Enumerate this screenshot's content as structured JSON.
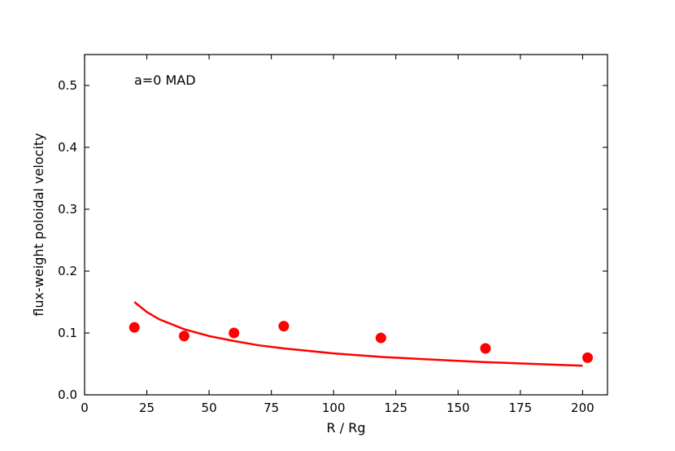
{
  "chart_data": {
    "type": "scatter",
    "title": "",
    "xlabel": "R / Rg",
    "ylabel": "flux-weight poloidal velocity",
    "xlim": [
      0,
      210
    ],
    "ylim": [
      0,
      0.55
    ],
    "xticks": [
      0,
      25,
      50,
      75,
      100,
      125,
      150,
      175,
      200
    ],
    "yticks": [
      0.0,
      0.1,
      0.2,
      0.3,
      0.4,
      0.5
    ],
    "xtick_labels": [
      "0",
      "25",
      "50",
      "75",
      "100",
      "125",
      "150",
      "175",
      "200"
    ],
    "ytick_labels": [
      "0.0",
      "0.1",
      "0.2",
      "0.3",
      "0.4",
      "0.5"
    ],
    "annotation": "a=0 MAD",
    "grid": false,
    "color": "#ff0000",
    "series": [
      {
        "kind": "points",
        "x": [
          20,
          40,
          60,
          80,
          119,
          161,
          202
        ],
        "y": [
          0.109,
          0.095,
          0.1,
          0.111,
          0.092,
          0.075,
          0.06
        ]
      },
      {
        "kind": "line",
        "x": [
          20,
          25,
          30,
          40,
          50,
          60,
          70,
          80,
          100,
          120,
          140,
          160,
          180,
          200
        ],
        "y": [
          0.15,
          0.134,
          0.122,
          0.106,
          0.095,
          0.087,
          0.08,
          0.075,
          0.067,
          0.061,
          0.057,
          0.053,
          0.05,
          0.047
        ]
      }
    ]
  }
}
